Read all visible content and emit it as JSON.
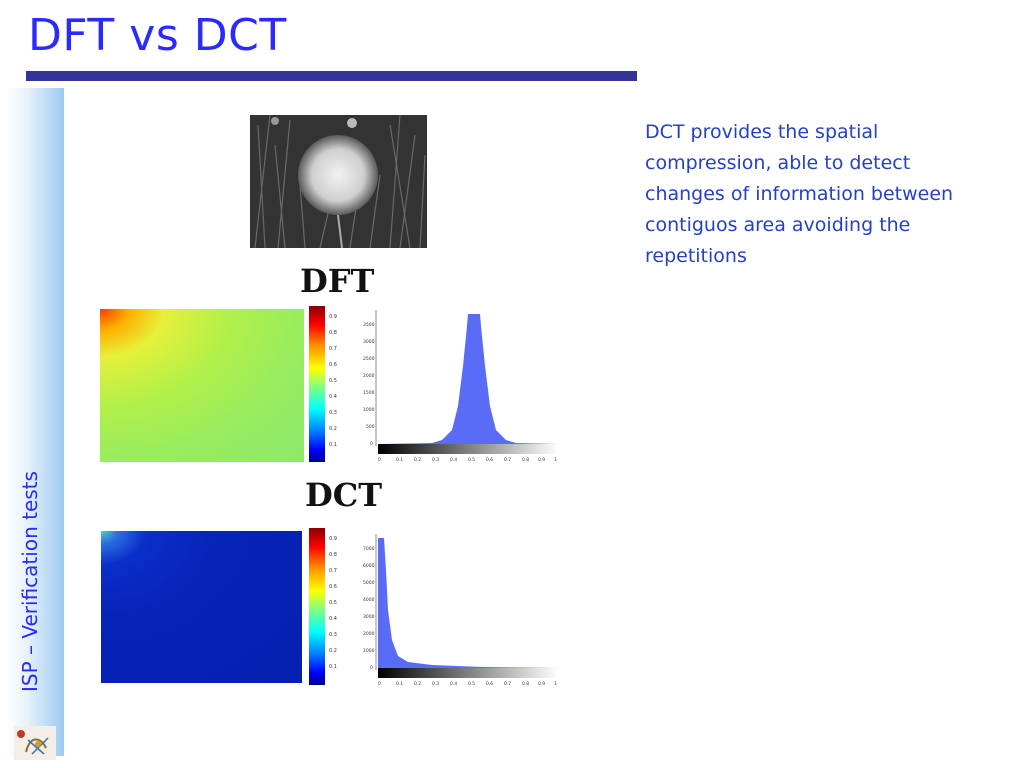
{
  "slide": {
    "title": "DFT vs DCT",
    "sidebar_label": "ISP – Verification tests",
    "description": "DCT provides the spatial compression, able to detect changes of information between contiguos area avoiding the repetitions"
  },
  "colors": {
    "title": "#2a2aff",
    "rule": "#333399",
    "description": "#2440c8",
    "histogram": "#5a6cf5"
  },
  "figure": {
    "photo_subject": "dandelion-grayscale",
    "panels": [
      {
        "title": "DFT",
        "colorbar_ticks": [
          "0.9",
          "0.8",
          "0.7",
          "0.6",
          "0.5",
          "0.4",
          "0.3",
          "0.2",
          "0.1"
        ],
        "hist_yticks": [
          "3500",
          "3000",
          "2500",
          "2000",
          "1500",
          "1000",
          "500",
          "0"
        ],
        "hist_xticks": [
          "0",
          "0.1",
          "0.2",
          "0.3",
          "0.4",
          "0.5",
          "0.6",
          "0.7",
          "0.8",
          "0.9",
          "1"
        ]
      },
      {
        "title": "DCT",
        "colorbar_ticks": [
          "0.9",
          "0.8",
          "0.7",
          "0.6",
          "0.5",
          "0.4",
          "0.3",
          "0.2",
          "0.1"
        ],
        "hist_yticks": [
          "7000",
          "6000",
          "5000",
          "4000",
          "3000",
          "2000",
          "1000",
          "0"
        ],
        "hist_xticks": [
          "0",
          "0.1",
          "0.2",
          "0.3",
          "0.4",
          "0.5",
          "0.6",
          "0.7",
          "0.8",
          "0.9",
          "1"
        ]
      }
    ]
  }
}
